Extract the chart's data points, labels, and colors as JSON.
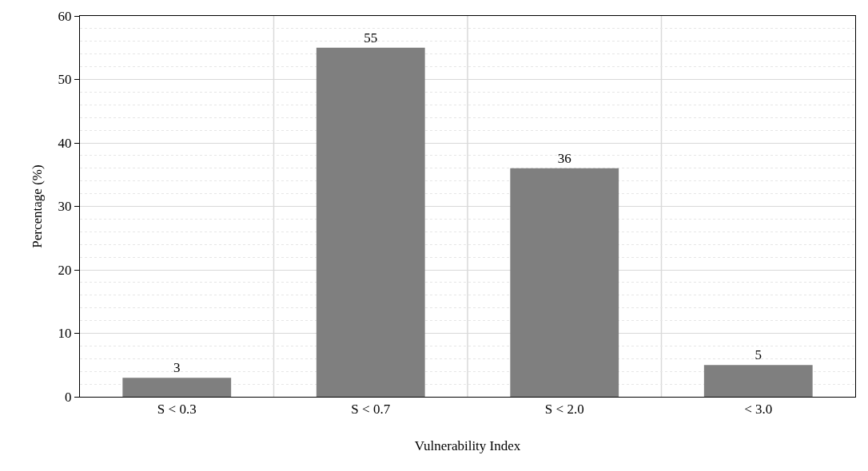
{
  "chart_data": {
    "type": "bar",
    "xlabel": "Vulnerability Index",
    "ylabel": "Percentage (%)",
    "categories": [
      "S < 0.3",
      "S < 0.7",
      "S < 2.0",
      "< 3.0"
    ],
    "values": [
      3,
      55,
      36,
      5
    ],
    "color": "#7f7f7f",
    "ylim": [
      0,
      60
    ],
    "yticks": [
      0,
      10,
      20,
      30,
      40,
      50,
      60
    ],
    "grid": true,
    "data_labels": true
  }
}
